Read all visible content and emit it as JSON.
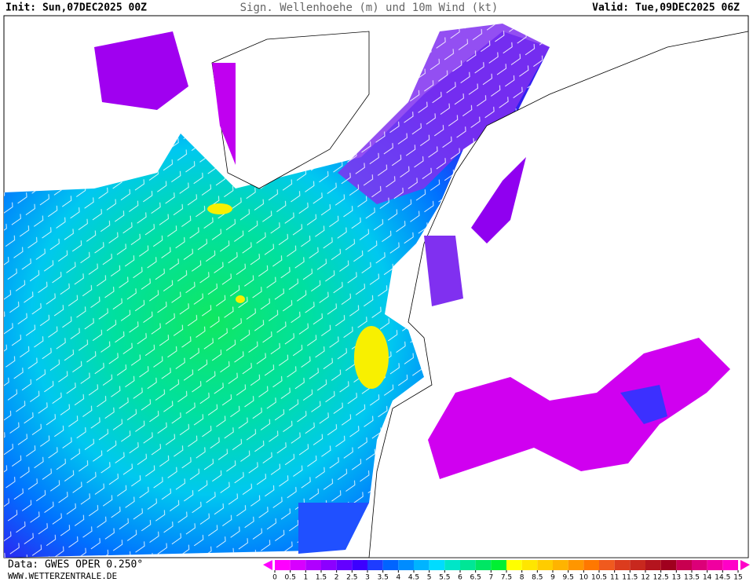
{
  "header": {
    "init": "Init: Sun,07DEC2025 00Z",
    "title": "Sign. Wellenhoehe (m) und 10m Wind (kt)",
    "valid": "Valid: Tue,09DEC2025 06Z"
  },
  "footer": {
    "data": "Data: GWES OPER 0.250°",
    "website": "WWW.WETTERZENTRALE.DE"
  },
  "colorbar": {
    "ticks": [
      0,
      0.5,
      1,
      1.5,
      2,
      2.5,
      3,
      3.5,
      4,
      4.5,
      5,
      5.5,
      6,
      6.5,
      7,
      7.5,
      8,
      8.5,
      9,
      9.5,
      10,
      10.5,
      11,
      11.5,
      12,
      12.5,
      13,
      13.5,
      14,
      14.5,
      15
    ],
    "colors": [
      "#ff00ff",
      "#d800ff",
      "#b000ff",
      "#8c00ff",
      "#6400ff",
      "#3c00ff",
      "#1e3cff",
      "#0064ff",
      "#008cff",
      "#00b4ff",
      "#00dcff",
      "#00e6c8",
      "#00e696",
      "#00e664",
      "#00f032",
      "#ffff00",
      "#ffe600",
      "#ffcc00",
      "#ffb400",
      "#ff9600",
      "#ff7800",
      "#f05a1e",
      "#dc3c1e",
      "#c8281e",
      "#b4141e",
      "#a0001e",
      "#c80050",
      "#dc0078",
      "#f000a0",
      "#ff00c8"
    ]
  }
}
